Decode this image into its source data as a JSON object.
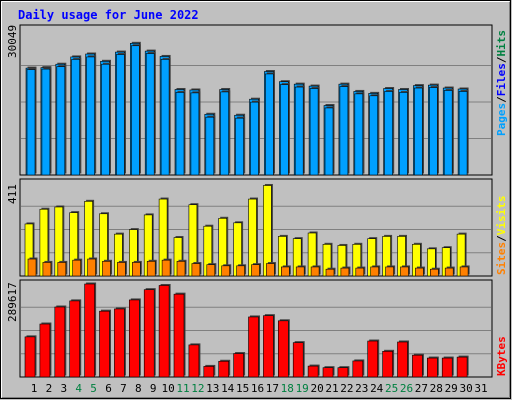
{
  "title": "Daily usage for June 2022",
  "colors": {
    "background": "#c0c0c0",
    "pages": "#00a0ff",
    "files": "#0000ff",
    "hits": "#008040",
    "visits": "#ffff00",
    "sites": "#ff8000",
    "kbytes": "#ff0000",
    "weekend_day": "#008040"
  },
  "panels": {
    "top": {
      "max_label": "30049",
      "legend": {
        "pages": "Pages",
        "files": "Files",
        "hits": "Hits",
        "sep": "/"
      }
    },
    "middle": {
      "max_label": "411",
      "legend": {
        "sites": "Sites",
        "visits": "Visits",
        "sep": "/"
      }
    },
    "bottom": {
      "max_label": "289617",
      "legend": {
        "kbytes": "KBytes"
      }
    }
  },
  "chart_data": {
    "type": "bar",
    "categories": [
      "1",
      "2",
      "3",
      "4",
      "5",
      "6",
      "7",
      "8",
      "9",
      "10",
      "11",
      "12",
      "13",
      "14",
      "15",
      "16",
      "17",
      "18",
      "19",
      "20",
      "21",
      "22",
      "23",
      "24",
      "25",
      "26",
      "27",
      "28",
      "29",
      "30",
      "31"
    ],
    "weekend_days": [
      "4",
      "5",
      "11",
      "12",
      "18",
      "19",
      "25",
      "26"
    ],
    "panels": [
      {
        "name": "top",
        "ylim": [
          0,
          30049
        ],
        "series": [
          {
            "name": "Hits",
            "values": [
              22000,
              22100,
              22800,
              24300,
              24900,
              23400,
              25300,
              27100,
              25500,
              24400,
              17600,
              17500,
              12500,
              17600,
              12300,
              15600,
              21300,
              19200,
              18700,
              18300,
              14300,
              18700,
              17200,
              16800,
              17800,
              17600,
              18400,
              18500,
              17900,
              17700,
              0
            ]
          },
          {
            "name": "Files",
            "values": [
              21700,
              21800,
              22300,
              23800,
              24300,
              22800,
              24800,
              26600,
              25000,
              23800,
              17000,
              16900,
              11900,
              17100,
              11700,
              15000,
              20800,
              18600,
              18100,
              17800,
              13800,
              18200,
              16700,
              16300,
              17200,
              17000,
              17900,
              18000,
              17400,
              17200,
              0
            ]
          },
          {
            "name": "Pages",
            "values": [
              0,
              0,
              0,
              0,
              0,
              0,
              0,
              0,
              0,
              0,
              0,
              0,
              0,
              0,
              0,
              0,
              0,
              0,
              0,
              0,
              0,
              0,
              0,
              0,
              0,
              0,
              0,
              0,
              0,
              0,
              0
            ]
          }
        ]
      },
      {
        "name": "middle",
        "ylim": [
          0,
          411
        ],
        "series": [
          {
            "name": "Visits",
            "values": [
              230,
              295,
              305,
              280,
              330,
              275,
              185,
              205,
              270,
              340,
              170,
              315,
              220,
              255,
              235,
              340,
              400,
              175,
              165,
              190,
              140,
              135,
              140,
              165,
              175,
              175,
              140,
              120,
              125,
              185,
              0
            ]
          },
          {
            "name": "Sites",
            "values": [
              75,
              60,
              60,
              70,
              75,
              65,
              60,
              60,
              65,
              70,
              65,
              55,
              50,
              45,
              45,
              50,
              55,
              40,
              40,
              40,
              30,
              35,
              35,
              40,
              40,
              40,
              35,
              30,
              35,
              40,
              0
            ]
          }
        ]
      },
      {
        "name": "bottom",
        "ylim": [
          0,
          289617
        ],
        "series": [
          {
            "name": "KBytes",
            "values": [
              125000,
              165000,
              218000,
              237000,
              289617,
              205000,
              212000,
              240000,
              272000,
              285000,
              258000,
              100000,
              33000,
              49000,
              73000,
              187000,
              191000,
              175000,
              107000,
              34000,
              29000,
              29000,
              50000,
              112000,
              80000,
              109000,
              68000,
              59000,
              59000,
              62000,
              0
            ]
          }
        ]
      }
    ]
  }
}
